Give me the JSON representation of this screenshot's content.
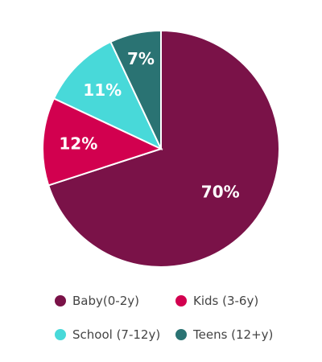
{
  "chart_data": {
    "type": "pie",
    "title": "",
    "categories": [
      "Baby(0-2y)",
      "Kids (3-6y)",
      "School (7-12y)",
      "Teens (12+y)"
    ],
    "values": [
      70,
      12,
      11,
      7
    ],
    "labels": [
      "70%",
      "12%",
      "11%",
      "7%"
    ],
    "colors": [
      "#7a1248",
      "#d2004f",
      "#48d9d9",
      "#2a7373"
    ],
    "legend_position": "bottom"
  }
}
